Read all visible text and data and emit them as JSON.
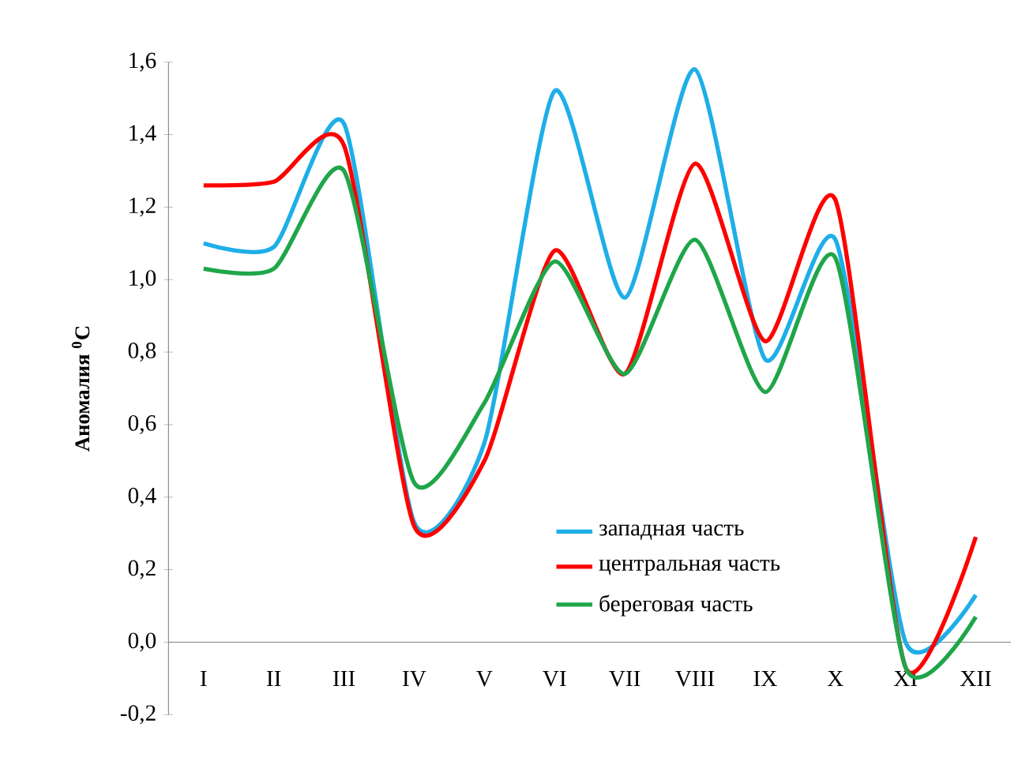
{
  "chart_data": {
    "type": "line",
    "ylabel": "**Аномалия $^{0}$C**",
    "categories": [
      "I",
      "II",
      "III",
      "IV",
      "V",
      "VI",
      "VII",
      "VIII",
      "IX",
      "X",
      "XI",
      "XII"
    ],
    "series": [
      {
        "name": "западная часть",
        "color": "#1eaee8",
        "values": [
          1.1,
          1.09,
          1.43,
          0.33,
          0.55,
          1.52,
          0.95,
          1.58,
          0.78,
          1.11,
          0.0,
          0.13
        ]
      },
      {
        "name": "центральная часть",
        "color": "#ff0000",
        "values": [
          1.26,
          1.27,
          1.37,
          0.32,
          0.5,
          1.08,
          0.74,
          1.32,
          0.83,
          1.22,
          -0.07,
          0.29
        ]
      },
      {
        "name": "береговая часть",
        "color": "#1fa64a",
        "values": [
          1.03,
          1.03,
          1.3,
          0.44,
          0.66,
          1.05,
          0.74,
          1.11,
          0.69,
          1.06,
          -0.07,
          0.07
        ]
      }
    ],
    "ylim": [
      -0.2,
      1.6
    ],
    "yticks": [
      {
        "value": -0.2,
        "label": "-0,2"
      },
      {
        "value": 0,
        "label": "0,0"
      },
      {
        "value": 0.2,
        "label": "0,2"
      },
      {
        "value": 0.4,
        "label": "0,4"
      },
      {
        "value": 0.6,
        "label": "0,6"
      },
      {
        "value": 0.8,
        "label": "0,8"
      },
      {
        "value": 1.0,
        "label": "1,0"
      },
      {
        "value": 1.2,
        "label": "1,2"
      },
      {
        "value": 1.4,
        "label": "1,4"
      },
      {
        "value": 1.6,
        "label": "1,6"
      }
    ],
    "grid": false,
    "legend": "bottom",
    "marker": "none",
    "line_style": "solid"
  }
}
